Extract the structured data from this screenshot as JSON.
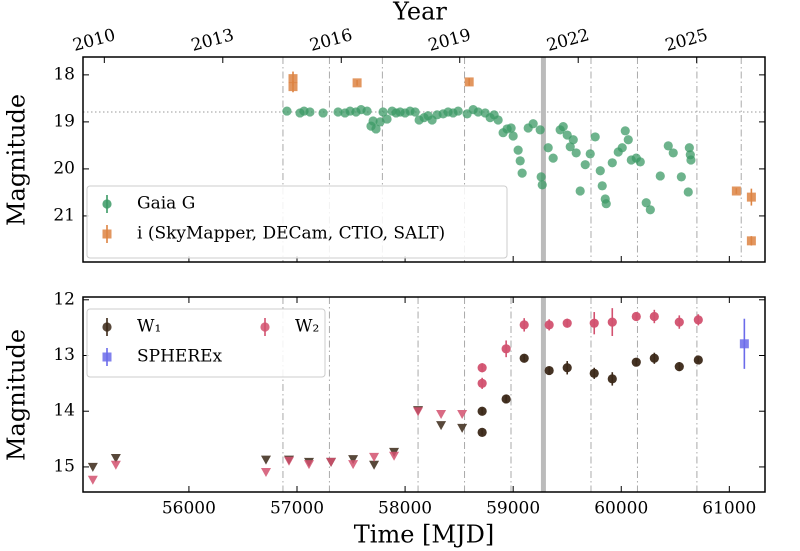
{
  "chart_data": [
    {
      "type": "scatter",
      "ylabel": "Magnitude",
      "x2label": "Year",
      "xlim": [
        55020,
        61330
      ],
      "xticks": [
        56000,
        57000,
        58000,
        59000,
        60000,
        61000
      ],
      "x2lim": [
        2009.46,
        2026.73
      ],
      "x2ticks": [
        2010,
        2013,
        2016,
        2019,
        2022,
        2025
      ],
      "ylim": [
        17.62,
        21.98
      ],
      "invert_y": true,
      "yticks": [
        18,
        19,
        20,
        21
      ],
      "baseline": 18.79,
      "epochs": [
        56870,
        57300,
        57790,
        58550,
        59720,
        60150,
        60700,
        61110
      ],
      "highlight": 59280,
      "legend": "lower left",
      "series": [
        {
          "name": "Gaia G",
          "color": "#3c9a66",
          "marker": "circle",
          "x": [
            56907,
            57028,
            57065,
            57120,
            57241,
            57380,
            57444,
            57491,
            57546,
            57593,
            57648,
            57685,
            57704,
            57731,
            57769,
            57796,
            57833,
            57880,
            57917,
            57954,
            58000,
            58046,
            58093,
            58130,
            58176,
            58213,
            58250,
            58296,
            58352,
            58398,
            58444,
            58491,
            58574,
            58630,
            58676,
            58741,
            58787,
            58824,
            58861,
            58907,
            58944,
            58981,
            59000,
            59046,
            59065,
            59083,
            59139,
            59185,
            59250,
            59259,
            59269,
            59324,
            59370,
            59435,
            59463,
            59500,
            59528,
            59556,
            59583,
            59620,
            59667,
            59713,
            59759,
            59806,
            59824,
            59852,
            59861,
            59917,
            59972,
            60009,
            60037,
            60065,
            60093,
            60139,
            60176,
            60231,
            60269,
            60361,
            60435,
            60481,
            60556,
            60620,
            60630,
            60639,
            60645
          ],
          "values": [
            18.77,
            18.81,
            18.77,
            18.79,
            18.81,
            18.79,
            18.81,
            18.77,
            18.79,
            18.74,
            18.77,
            19.09,
            18.98,
            19.15,
            19.0,
            18.79,
            18.94,
            18.77,
            18.81,
            18.79,
            18.81,
            18.77,
            18.79,
            18.96,
            18.91,
            18.87,
            18.96,
            18.85,
            18.83,
            18.79,
            18.81,
            18.77,
            18.83,
            18.74,
            18.79,
            18.81,
            18.91,
            18.85,
            18.96,
            19.23,
            19.15,
            19.13,
            19.3,
            19.6,
            19.83,
            20.09,
            19.13,
            19.04,
            19.17,
            20.17,
            20.34,
            19.55,
            19.77,
            19.17,
            19.1,
            19.28,
            19.53,
            19.38,
            19.66,
            20.47,
            19.91,
            19.68,
            19.32,
            20.04,
            20.36,
            20.64,
            20.74,
            19.87,
            19.64,
            19.55,
            19.19,
            19.38,
            19.81,
            19.77,
            19.85,
            20.72,
            20.87,
            20.15,
            19.51,
            19.66,
            20.17,
            20.49,
            19.55,
            19.7,
            19.81
          ]
        },
        {
          "name": "i (SkyMapper, DECam, CTIO, SALT)",
          "color": "#dd8443",
          "marker": "square",
          "x": [
            56963,
            56963,
            57556,
            58593,
            61065,
            61204,
            61204
          ],
          "values": [
            18.08,
            18.25,
            18.17,
            18.15,
            20.47,
            20.6,
            21.53
          ],
          "errors": [
            0.15,
            0.12,
            0.06,
            0.08,
            0.06,
            0.18,
            0.1
          ]
        }
      ]
    },
    {
      "type": "scatter",
      "ylabel": "Magnitude",
      "xlabel": "Time [MJD]",
      "xlim": [
        55020,
        61330
      ],
      "xticks": [
        56000,
        57000,
        58000,
        59000,
        60000,
        61000
      ],
      "ylim": [
        11.95,
        15.45
      ],
      "invert_y": true,
      "yticks": [
        12,
        13,
        14,
        15
      ],
      "epochs": [
        56870,
        57300,
        58120,
        58550,
        58980,
        59720,
        60150,
        60700
      ],
      "highlight": 59280,
      "legend": "upper left",
      "series": [
        {
          "name": "W₁",
          "color": "#3b2818",
          "marker": "circle",
          "x": [
            55111,
            55324,
            56713,
            56926,
            57111,
            57315,
            57519,
            57713,
            57898,
            58120,
            58333,
            58528,
            58713,
            58713,
            58935,
            59102,
            59333,
            59500,
            59750,
            59917,
            60139,
            60306,
            60537,
            60713
          ],
          "values": [
            15.0,
            14.84,
            14.87,
            14.87,
            14.91,
            14.91,
            14.86,
            14.96,
            14.73,
            13.98,
            14.25,
            14.3,
            14.38,
            14.0,
            13.78,
            13.05,
            13.27,
            13.22,
            13.32,
            13.42,
            13.12,
            13.05,
            13.2,
            13.08
          ],
          "errors": [
            null,
            null,
            null,
            null,
            null,
            null,
            null,
            null,
            null,
            null,
            null,
            null,
            0.05,
            0.06,
            0.08,
            0.06,
            0.07,
            0.12,
            0.1,
            0.12,
            0.07,
            0.1,
            0.08,
            0.05
          ]
        },
        {
          "name": "W₂",
          "color": "#d2516f",
          "marker": "circle",
          "x": [
            55111,
            55324,
            56713,
            56926,
            57111,
            57315,
            57519,
            57713,
            57898,
            58120,
            58333,
            58528,
            58713,
            58713,
            58935,
            59102,
            59333,
            59500,
            59750,
            59917,
            60139,
            60306,
            60537,
            60713
          ],
          "values": [
            15.23,
            14.96,
            15.09,
            14.89,
            14.95,
            14.91,
            14.95,
            14.82,
            14.8,
            14.0,
            14.05,
            14.05,
            13.22,
            13.5,
            12.88,
            12.45,
            12.45,
            12.42,
            12.42,
            12.4,
            12.3,
            12.3,
            12.4,
            12.36
          ],
          "errors": [
            null,
            null,
            null,
            null,
            null,
            null,
            null,
            null,
            null,
            null,
            null,
            null,
            0.08,
            0.1,
            0.15,
            0.12,
            0.1,
            0.08,
            0.2,
            0.25,
            0.06,
            0.12,
            0.12,
            0.1
          ]
        },
        {
          "name": "SPHEREx",
          "color": "#6b6bea",
          "marker": "square",
          "x": [
            61139
          ],
          "values": [
            12.79
          ],
          "errors": [
            0.45
          ]
        }
      ]
    }
  ]
}
